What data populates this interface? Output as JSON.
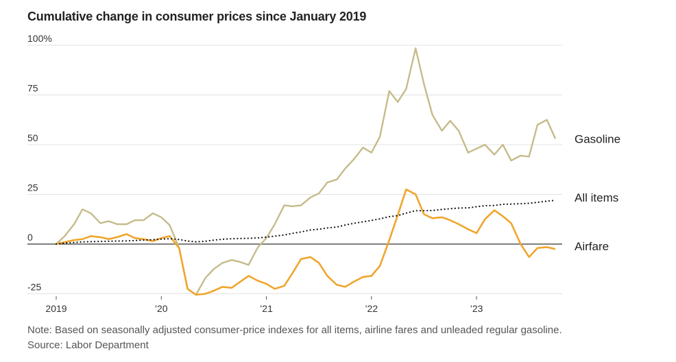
{
  "title": "Cumulative change in consumer prices since January 2019",
  "note": "Note: Based on seasonally adjusted consumer-price indexes for all items, airline fares and unleaded regular gasoline.",
  "source": "Source: Labor Department",
  "chart_data": {
    "type": "line",
    "title": "Cumulative change in consumer prices since January 2019",
    "xlabel": "",
    "ylabel": "",
    "ylim": [
      -25,
      100
    ],
    "xlim": [
      2019.0,
      2023.75
    ],
    "y_ticks": [
      {
        "value": 100,
        "label": "100%"
      },
      {
        "value": 75,
        "label": "75"
      },
      {
        "value": 50,
        "label": "50"
      },
      {
        "value": 25,
        "label": "25"
      },
      {
        "value": 0,
        "label": "0"
      },
      {
        "value": -25,
        "label": "-25"
      }
    ],
    "x_ticks": [
      {
        "value": 2019,
        "label": "2019"
      },
      {
        "value": 2020,
        "label": "’20"
      },
      {
        "value": 2021,
        "label": "’21"
      },
      {
        "value": 2022,
        "label": "’22"
      },
      {
        "value": 2023,
        "label": "’23"
      }
    ],
    "grid": "horizontal",
    "legend": "direct labels at right end of lines",
    "colors": {
      "gasoline": "#c5bb8a",
      "all_items": "#111111",
      "airfare": "#f0a52c",
      "grid": "#e2e2e2",
      "zero": "#333333"
    },
    "series": [
      {
        "name": "Gasoline",
        "key": "gasoline",
        "values": [
          [
            2019.0,
            0
          ],
          [
            2019.08,
            4
          ],
          [
            2019.17,
            10
          ],
          [
            2019.25,
            17.5
          ],
          [
            2019.33,
            15.5
          ],
          [
            2019.42,
            10.5
          ],
          [
            2019.5,
            11.5
          ],
          [
            2019.58,
            10
          ],
          [
            2019.67,
            10
          ],
          [
            2019.75,
            12
          ],
          [
            2019.83,
            12
          ],
          [
            2019.92,
            15.5
          ],
          [
            2020.0,
            13.5
          ],
          [
            2020.08,
            9.5
          ],
          [
            2020.17,
            -2
          ],
          [
            2020.25,
            -22.5
          ],
          [
            2020.33,
            -25.5
          ],
          [
            2020.42,
            -17
          ],
          [
            2020.5,
            -12.5
          ],
          [
            2020.58,
            -9.5
          ],
          [
            2020.67,
            -8
          ],
          [
            2020.75,
            -9
          ],
          [
            2020.83,
            -10.5
          ],
          [
            2020.92,
            -1.5
          ],
          [
            2021.0,
            3
          ],
          [
            2021.08,
            10
          ],
          [
            2021.17,
            19.5
          ],
          [
            2021.25,
            19
          ],
          [
            2021.33,
            19.5
          ],
          [
            2021.42,
            23.5
          ],
          [
            2021.5,
            25.5
          ],
          [
            2021.58,
            31
          ],
          [
            2021.67,
            32.5
          ],
          [
            2021.75,
            38
          ],
          [
            2021.83,
            42.5
          ],
          [
            2021.92,
            48.5
          ],
          [
            2022.0,
            46
          ],
          [
            2022.08,
            54
          ],
          [
            2022.17,
            77
          ],
          [
            2022.25,
            71.5
          ],
          [
            2022.33,
            78
          ],
          [
            2022.42,
            98.5
          ],
          [
            2022.5,
            80.5
          ],
          [
            2022.58,
            65
          ],
          [
            2022.67,
            57
          ],
          [
            2022.75,
            62
          ],
          [
            2022.83,
            57
          ],
          [
            2022.92,
            46
          ],
          [
            2023.0,
            48
          ],
          [
            2023.08,
            50
          ],
          [
            2023.17,
            45
          ],
          [
            2023.25,
            50
          ],
          [
            2023.33,
            42
          ],
          [
            2023.42,
            44.5
          ],
          [
            2023.5,
            44
          ],
          [
            2023.58,
            60
          ],
          [
            2023.67,
            62.5
          ],
          [
            2023.75,
            53
          ]
        ]
      },
      {
        "name": "All items",
        "key": "all_items",
        "values": [
          [
            2019.0,
            0
          ],
          [
            2019.08,
            0.5
          ],
          [
            2019.17,
            0.8
          ],
          [
            2019.25,
            1.1
          ],
          [
            2019.33,
            1.2
          ],
          [
            2019.42,
            1.3
          ],
          [
            2019.5,
            1.4
          ],
          [
            2019.58,
            1.5
          ],
          [
            2019.67,
            1.6
          ],
          [
            2019.75,
            1.8
          ],
          [
            2019.83,
            2.0
          ],
          [
            2019.92,
            2.2
          ],
          [
            2020.0,
            2.5
          ],
          [
            2020.08,
            2.7
          ],
          [
            2020.17,
            2.3
          ],
          [
            2020.25,
            1.5
          ],
          [
            2020.33,
            1.1
          ],
          [
            2020.42,
            1.4
          ],
          [
            2020.5,
            2.0
          ],
          [
            2020.58,
            2.4
          ],
          [
            2020.67,
            2.7
          ],
          [
            2020.75,
            2.8
          ],
          [
            2020.83,
            2.9
          ],
          [
            2020.92,
            3.1
          ],
          [
            2021.0,
            3.5
          ],
          [
            2021.08,
            4.0
          ],
          [
            2021.17,
            4.6
          ],
          [
            2021.25,
            5.4
          ],
          [
            2021.33,
            6.1
          ],
          [
            2021.42,
            7.1
          ],
          [
            2021.5,
            7.5
          ],
          [
            2021.58,
            8.1
          ],
          [
            2021.67,
            8.6
          ],
          [
            2021.75,
            9.6
          ],
          [
            2021.83,
            10.4
          ],
          [
            2021.92,
            11.2
          ],
          [
            2022.0,
            11.9
          ],
          [
            2022.08,
            12.7
          ],
          [
            2022.17,
            13.8
          ],
          [
            2022.25,
            14.3
          ],
          [
            2022.33,
            15.6
          ],
          [
            2022.42,
            16.8
          ],
          [
            2022.5,
            16.8
          ],
          [
            2022.58,
            16.9
          ],
          [
            2022.67,
            17.4
          ],
          [
            2022.75,
            17.8
          ],
          [
            2022.83,
            18.1
          ],
          [
            2022.92,
            18.2
          ],
          [
            2023.0,
            18.8
          ],
          [
            2023.08,
            19.3
          ],
          [
            2023.17,
            19.4
          ],
          [
            2023.25,
            20
          ],
          [
            2023.33,
            20.1
          ],
          [
            2023.42,
            20.3
          ],
          [
            2023.5,
            20.5
          ],
          [
            2023.58,
            21
          ],
          [
            2023.67,
            21.6
          ],
          [
            2023.75,
            22
          ]
        ]
      },
      {
        "name": "Airfare",
        "key": "airfare",
        "values": [
          [
            2019.0,
            0
          ],
          [
            2019.08,
            1
          ],
          [
            2019.17,
            2
          ],
          [
            2019.25,
            2.5
          ],
          [
            2019.33,
            4
          ],
          [
            2019.42,
            3.5
          ],
          [
            2019.5,
            2.5
          ],
          [
            2019.58,
            3.5
          ],
          [
            2019.67,
            5
          ],
          [
            2019.75,
            3
          ],
          [
            2019.83,
            2.5
          ],
          [
            2019.92,
            1.5
          ],
          [
            2020.0,
            3
          ],
          [
            2020.08,
            4
          ],
          [
            2020.17,
            -2
          ],
          [
            2020.25,
            -22.5
          ],
          [
            2020.33,
            -25.5
          ],
          [
            2020.42,
            -25
          ],
          [
            2020.5,
            -23.5
          ],
          [
            2020.58,
            -21.5
          ],
          [
            2020.67,
            -22
          ],
          [
            2020.75,
            -19
          ],
          [
            2020.83,
            -16
          ],
          [
            2020.92,
            -18.5
          ],
          [
            2021.0,
            -20
          ],
          [
            2021.08,
            -22.5
          ],
          [
            2021.17,
            -21
          ],
          [
            2021.25,
            -14.5
          ],
          [
            2021.33,
            -7.5
          ],
          [
            2021.42,
            -6.5
          ],
          [
            2021.5,
            -9.5
          ],
          [
            2021.58,
            -16
          ],
          [
            2021.67,
            -20.5
          ],
          [
            2021.75,
            -21.5
          ],
          [
            2021.83,
            -19
          ],
          [
            2021.92,
            -16.5
          ],
          [
            2022.0,
            -16
          ],
          [
            2022.08,
            -11
          ],
          [
            2022.17,
            2
          ],
          [
            2022.25,
            14.5
          ],
          [
            2022.33,
            27.5
          ],
          [
            2022.42,
            25
          ],
          [
            2022.5,
            15
          ],
          [
            2022.58,
            13
          ],
          [
            2022.67,
            13.5
          ],
          [
            2022.75,
            12
          ],
          [
            2022.83,
            10
          ],
          [
            2022.92,
            7.5
          ],
          [
            2023.0,
            5.5
          ],
          [
            2023.08,
            12.5
          ],
          [
            2023.17,
            17
          ],
          [
            2023.25,
            14
          ],
          [
            2023.33,
            10.5
          ],
          [
            2023.42,
            0
          ],
          [
            2023.5,
            -6.5
          ],
          [
            2023.58,
            -2
          ],
          [
            2023.67,
            -1.5
          ],
          [
            2023.75,
            -2.5
          ]
        ]
      }
    ]
  }
}
